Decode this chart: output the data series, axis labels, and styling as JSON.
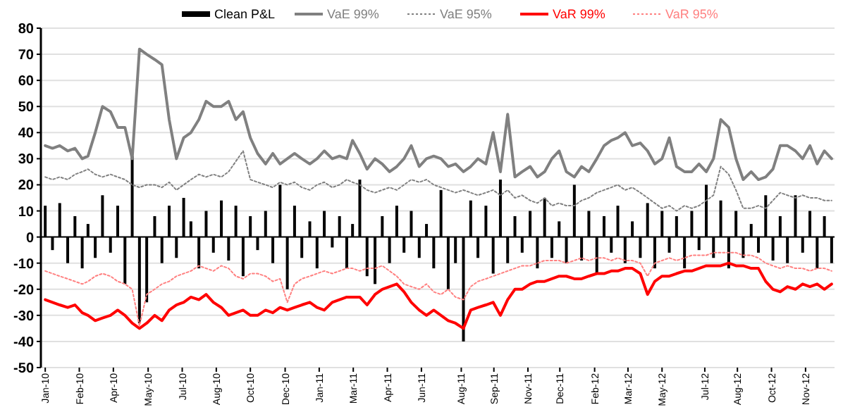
{
  "chart_data": {
    "type": "line",
    "legend": "top",
    "grid": "y",
    "ylim": [
      -50,
      80
    ],
    "yticks": [
      -50,
      -40,
      -30,
      -20,
      -10,
      0,
      10,
      20,
      30,
      40,
      50,
      60,
      70,
      80
    ],
    "xlim": [
      "2009-12-29",
      "2012-12-28"
    ],
    "xticks": [
      {
        "value": "2010-01-04",
        "label": "Jan-10"
      },
      {
        "value": "2010-02-20",
        "label": "Feb-10"
      },
      {
        "value": "2010-04-08",
        "label": "Apr-10"
      },
      {
        "value": "2010-05-26",
        "label": "May-10"
      },
      {
        "value": "2010-07-12",
        "label": "Jul-10"
      },
      {
        "value": "2010-08-28",
        "label": "Aug-10"
      },
      {
        "value": "2010-10-14",
        "label": "Oct-10"
      },
      {
        "value": "2010-12-01",
        "label": "Dec-10"
      },
      {
        "value": "2011-01-17",
        "label": "Jan-11"
      },
      {
        "value": "2011-03-05",
        "label": "Mar-11"
      },
      {
        "value": "2011-04-21",
        "label": "Apr-11"
      },
      {
        "value": "2011-06-07",
        "label": "Jun-11"
      },
      {
        "value": "2011-08-01",
        "label": "Aug-11"
      },
      {
        "value": "2011-09-15",
        "label": "Sep-11"
      },
      {
        "value": "2011-11-01",
        "label": "Nov-11"
      },
      {
        "value": "2011-12-15",
        "label": "Dec-11"
      },
      {
        "value": "2012-02-01",
        "label": "Feb-12"
      },
      {
        "value": "2012-03-18",
        "label": "Mar-12"
      },
      {
        "value": "2012-05-04",
        "label": "May-12"
      },
      {
        "value": "2012-07-02",
        "label": "Jul-12"
      },
      {
        "value": "2012-08-16",
        "label": "Aug-12"
      },
      {
        "value": "2012-10-02",
        "label": "Oct-12"
      },
      {
        "value": "2012-11-18",
        "label": "Nov-12"
      }
    ],
    "x": [
      "2010-01-04",
      "2010-01-14",
      "2010-01-24",
      "2010-02-04",
      "2010-02-14",
      "2010-02-24",
      "2010-03-04",
      "2010-03-14",
      "2010-03-24",
      "2010-04-04",
      "2010-04-14",
      "2010-04-24",
      "2010-05-04",
      "2010-05-14",
      "2010-05-24",
      "2010-06-04",
      "2010-06-14",
      "2010-06-24",
      "2010-07-04",
      "2010-07-14",
      "2010-07-24",
      "2010-08-04",
      "2010-08-14",
      "2010-08-24",
      "2010-09-04",
      "2010-09-14",
      "2010-09-24",
      "2010-10-04",
      "2010-10-14",
      "2010-10-24",
      "2010-11-04",
      "2010-11-14",
      "2010-11-24",
      "2010-12-04",
      "2010-12-14",
      "2010-12-24",
      "2011-01-04",
      "2011-01-14",
      "2011-01-24",
      "2011-02-04",
      "2011-02-14",
      "2011-02-24",
      "2011-03-04",
      "2011-03-14",
      "2011-03-24",
      "2011-04-04",
      "2011-04-14",
      "2011-04-24",
      "2011-05-04",
      "2011-05-14",
      "2011-05-24",
      "2011-06-04",
      "2011-06-14",
      "2011-06-24",
      "2011-07-04",
      "2011-07-14",
      "2011-07-24",
      "2011-08-04",
      "2011-08-14",
      "2011-08-24",
      "2011-09-04",
      "2011-09-14",
      "2011-09-24",
      "2011-10-04",
      "2011-10-14",
      "2011-10-24",
      "2011-11-04",
      "2011-11-14",
      "2011-11-24",
      "2011-12-04",
      "2011-12-14",
      "2011-12-24",
      "2012-01-04",
      "2012-01-14",
      "2012-01-24",
      "2012-02-04",
      "2012-02-14",
      "2012-02-24",
      "2012-03-04",
      "2012-03-14",
      "2012-03-24",
      "2012-04-04",
      "2012-04-14",
      "2012-04-24",
      "2012-05-04",
      "2012-05-14",
      "2012-05-24",
      "2012-06-04",
      "2012-06-14",
      "2012-06-24",
      "2012-07-04",
      "2012-07-14",
      "2012-07-24",
      "2012-08-04",
      "2012-08-14",
      "2012-08-24",
      "2012-09-04",
      "2012-09-14",
      "2012-09-24",
      "2012-10-04",
      "2012-10-14",
      "2012-10-24",
      "2012-11-04",
      "2012-11-14",
      "2012-11-24",
      "2012-12-04",
      "2012-12-14",
      "2012-12-24"
    ],
    "series": [
      {
        "name": "Clean P&L",
        "type": "bar",
        "color": "#000000",
        "values": [
          12,
          -5,
          13,
          -10,
          8,
          -12,
          5,
          -8,
          16,
          -6,
          12,
          -18,
          31,
          -33,
          -25,
          8,
          -10,
          12,
          -8,
          15,
          6,
          -12,
          10,
          -6,
          14,
          -9,
          12,
          -15,
          8,
          -5,
          10,
          -10,
          20,
          -20,
          12,
          -8,
          6,
          -12,
          10,
          -4,
          8,
          -12,
          5,
          22,
          -15,
          -18,
          8,
          -10,
          12,
          -6,
          10,
          -8,
          5,
          -12,
          18,
          -20,
          -10,
          -40,
          14,
          -8,
          12,
          -14,
          22,
          -10,
          8,
          -6,
          10,
          -12,
          15,
          -8,
          6,
          -10,
          20,
          -9,
          10,
          -14,
          8,
          -6,
          12,
          -10,
          6,
          -8,
          13,
          -12,
          10,
          -6,
          8,
          -12,
          10,
          -5,
          20,
          -8,
          14,
          -12,
          10,
          -8,
          5,
          -6,
          16,
          -9,
          8,
          -10,
          16,
          -6,
          10,
          -12,
          8,
          -10
        ]
      },
      {
        "name": "VaE 99%",
        "line_style": "solid",
        "color": "#808080",
        "values": [
          35,
          34,
          35,
          33,
          34,
          30,
          31,
          40,
          50,
          48,
          42,
          42,
          30,
          72,
          70,
          68,
          66,
          45,
          30,
          38,
          40,
          45,
          52,
          50,
          50,
          52,
          45,
          48,
          38,
          32,
          28,
          32,
          28,
          30,
          32,
          30,
          28,
          30,
          33,
          30,
          31,
          30,
          37,
          32,
          26,
          30,
          28,
          25,
          27,
          30,
          35,
          27,
          30,
          31,
          30,
          27,
          28,
          25,
          27,
          30,
          28,
          40,
          25,
          47,
          23,
          25,
          27,
          23,
          25,
          30,
          33,
          25,
          23,
          27,
          25,
          30,
          35,
          37,
          38,
          40,
          35,
          36,
          33,
          28,
          30,
          38,
          27,
          25,
          25,
          28,
          25,
          30,
          45,
          42,
          30,
          22,
          25,
          22,
          23,
          26,
          35,
          35,
          33,
          30,
          35,
          28,
          33,
          30
        ]
      },
      {
        "name": "VaE 95%",
        "line_style": "dotted",
        "color": "#808080",
        "values": [
          23,
          22,
          23,
          22,
          24,
          25,
          26,
          24,
          23,
          24,
          23,
          22,
          20,
          19,
          20,
          20,
          19,
          21,
          18,
          20,
          22,
          24,
          23,
          24,
          23,
          25,
          29,
          33,
          22,
          21,
          20,
          19,
          21,
          20,
          21,
          19,
          18,
          20,
          21,
          19,
          20,
          22,
          21,
          20,
          18,
          17,
          18,
          19,
          18,
          20,
          22,
          21,
          22,
          20,
          19,
          18,
          17,
          18,
          17,
          16,
          17,
          18,
          16,
          18,
          15,
          16,
          14,
          13,
          15,
          12,
          13,
          12,
          12,
          14,
          15,
          17,
          18,
          19,
          20,
          18,
          19,
          17,
          15,
          13,
          11,
          12,
          10,
          12,
          11,
          12,
          14,
          16,
          27,
          24,
          18,
          11,
          11,
          12,
          11,
          14,
          17,
          16,
          15,
          16,
          15,
          15,
          14,
          14
        ]
      },
      {
        "name": "VaR 99%",
        "line_style": "solid",
        "color": "#ff0000",
        "values": [
          -24,
          -25,
          -26,
          -27,
          -26,
          -29,
          -30,
          -32,
          -31,
          -30,
          -28,
          -30,
          -33,
          -35,
          -33,
          -30,
          -32,
          -28,
          -26,
          -25,
          -23,
          -24,
          -22,
          -25,
          -27,
          -30,
          -29,
          -28,
          -30,
          -30,
          -28,
          -29,
          -27,
          -28,
          -27,
          -26,
          -25,
          -27,
          -28,
          -25,
          -24,
          -23,
          -23,
          -23,
          -26,
          -22,
          -20,
          -19,
          -18,
          -21,
          -25,
          -28,
          -30,
          -28,
          -30,
          -32,
          -33,
          -35,
          -28,
          -27,
          -26,
          -25,
          -30,
          -24,
          -20,
          -20,
          -18,
          -17,
          -17,
          -16,
          -15,
          -15,
          -16,
          -16,
          -15,
          -14,
          -14,
          -13,
          -13,
          -12,
          -12,
          -14,
          -22,
          -17,
          -15,
          -15,
          -14,
          -13,
          -13,
          -12,
          -11,
          -11,
          -11,
          -10,
          -11,
          -11,
          -12,
          -12,
          -17,
          -20,
          -21,
          -19,
          -20,
          -18,
          -19,
          -18,
          -20,
          -18
        ]
      },
      {
        "name": "VaR 95%",
        "line_style": "dotted",
        "color": "#ff8080",
        "values": [
          -13,
          -14,
          -15,
          -16,
          -17,
          -18,
          -17,
          -15,
          -14,
          -15,
          -17,
          -18,
          -20,
          -34,
          -22,
          -20,
          -18,
          -17,
          -15,
          -14,
          -13,
          -11,
          -12,
          -13,
          -11,
          -12,
          -15,
          -16,
          -14,
          -14,
          -15,
          -17,
          -16,
          -25,
          -18,
          -16,
          -15,
          -14,
          -13,
          -14,
          -13,
          -12,
          -12,
          -13,
          -12,
          -12,
          -11,
          -13,
          -15,
          -18,
          -19,
          -20,
          -18,
          -21,
          -22,
          -20,
          -23,
          -24,
          -19,
          -17,
          -16,
          -15,
          -14,
          -13,
          -12,
          -11,
          -11,
          -10,
          -9,
          -9,
          -9,
          -10,
          -9,
          -8,
          -9,
          -8,
          -8,
          -9,
          -8,
          -9,
          -9,
          -10,
          -15,
          -10,
          -9,
          -8,
          -9,
          -8,
          -7,
          -7,
          -7,
          -6,
          -6,
          -6,
          -6,
          -7,
          -7,
          -8,
          -10,
          -11,
          -12,
          -11,
          -12,
          -12,
          -13,
          -12,
          -12,
          -13
        ]
      }
    ]
  }
}
